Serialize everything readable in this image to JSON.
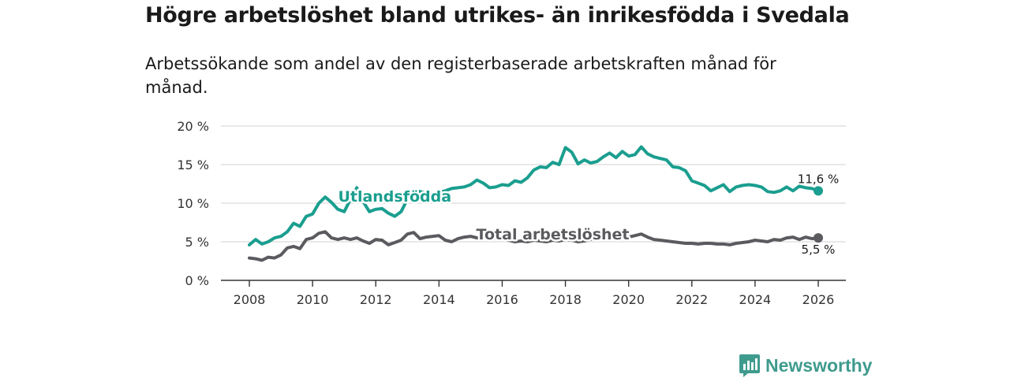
{
  "chart_data": {
    "type": "line",
    "title": "Högre arbetslöshet bland utrikes- än inrikesfödda i Svedala",
    "subtitle": "Arbetssökande som andel av den registerbaserade arbetskraften månad för månad.",
    "xlabel": "",
    "ylabel": "",
    "xlim": [
      2008,
      2026
    ],
    "ylim": [
      0,
      20
    ],
    "x_ticks": [
      {
        "value": 2008,
        "label": "2008"
      },
      {
        "value": 2010,
        "label": "2010"
      },
      {
        "value": 2012,
        "label": "2012"
      },
      {
        "value": 2014,
        "label": "2014"
      },
      {
        "value": 2016,
        "label": "2016"
      },
      {
        "value": 2018,
        "label": "2018"
      },
      {
        "value": 2020,
        "label": "2020"
      },
      {
        "value": 2022,
        "label": "2022"
      },
      {
        "value": 2024,
        "label": "2024"
      },
      {
        "value": 2026,
        "label": "2026"
      }
    ],
    "y_ticks": [
      {
        "value": 0,
        "label": "0 %"
      },
      {
        "value": 5,
        "label": "5 %"
      },
      {
        "value": 10,
        "label": "10 %"
      },
      {
        "value": 15,
        "label": "15 %"
      },
      {
        "value": 20,
        "label": "20 %"
      }
    ],
    "series": [
      {
        "name": "Utlandsfödda",
        "label": "Utlandsfödda",
        "end_label": "11,6 %",
        "color": "#1a9e8f",
        "label_anchor": {
          "x": 2012.6,
          "y": 10.2
        },
        "points": [
          [
            2008.0,
            4.6
          ],
          [
            2008.2,
            5.3
          ],
          [
            2008.4,
            4.7
          ],
          [
            2008.6,
            5.0
          ],
          [
            2008.8,
            5.5
          ],
          [
            2009.0,
            5.7
          ],
          [
            2009.2,
            6.3
          ],
          [
            2009.4,
            7.4
          ],
          [
            2009.6,
            7.0
          ],
          [
            2009.8,
            8.3
          ],
          [
            2010.0,
            8.6
          ],
          [
            2010.2,
            10.0
          ],
          [
            2010.4,
            10.8
          ],
          [
            2010.6,
            10.1
          ],
          [
            2010.8,
            9.2
          ],
          [
            2011.0,
            8.9
          ],
          [
            2011.2,
            10.5
          ],
          [
            2011.4,
            12.0
          ],
          [
            2011.6,
            10.2
          ],
          [
            2011.8,
            8.9
          ],
          [
            2012.0,
            9.2
          ],
          [
            2012.2,
            9.3
          ],
          [
            2012.4,
            8.7
          ],
          [
            2012.6,
            8.3
          ],
          [
            2012.8,
            8.9
          ],
          [
            2013.0,
            10.5
          ],
          [
            2013.2,
            11.7
          ],
          [
            2013.4,
            11.5
          ],
          [
            2013.6,
            11.3
          ],
          [
            2013.8,
            11.2
          ],
          [
            2014.0,
            11.4
          ],
          [
            2014.2,
            11.6
          ],
          [
            2014.4,
            11.9
          ],
          [
            2014.6,
            12.0
          ],
          [
            2014.8,
            12.1
          ],
          [
            2015.0,
            12.4
          ],
          [
            2015.2,
            13.0
          ],
          [
            2015.4,
            12.6
          ],
          [
            2015.6,
            12.0
          ],
          [
            2015.8,
            12.1
          ],
          [
            2016.0,
            12.4
          ],
          [
            2016.2,
            12.3
          ],
          [
            2016.4,
            12.9
          ],
          [
            2016.6,
            12.7
          ],
          [
            2016.8,
            13.3
          ],
          [
            2017.0,
            14.3
          ],
          [
            2017.2,
            14.7
          ],
          [
            2017.4,
            14.6
          ],
          [
            2017.6,
            15.3
          ],
          [
            2017.8,
            15.0
          ],
          [
            2018.0,
            17.2
          ],
          [
            2018.2,
            16.6
          ],
          [
            2018.4,
            15.1
          ],
          [
            2018.6,
            15.6
          ],
          [
            2018.8,
            15.2
          ],
          [
            2019.0,
            15.4
          ],
          [
            2019.2,
            16.0
          ],
          [
            2019.4,
            16.5
          ],
          [
            2019.6,
            15.9
          ],
          [
            2019.8,
            16.7
          ],
          [
            2020.0,
            16.1
          ],
          [
            2020.2,
            16.3
          ],
          [
            2020.4,
            17.3
          ],
          [
            2020.6,
            16.4
          ],
          [
            2020.8,
            16.0
          ],
          [
            2021.0,
            15.8
          ],
          [
            2021.2,
            15.6
          ],
          [
            2021.4,
            14.7
          ],
          [
            2021.6,
            14.6
          ],
          [
            2021.8,
            14.2
          ],
          [
            2022.0,
            12.9
          ],
          [
            2022.2,
            12.6
          ],
          [
            2022.4,
            12.3
          ],
          [
            2022.6,
            11.6
          ],
          [
            2022.8,
            12.0
          ],
          [
            2023.0,
            12.4
          ],
          [
            2023.2,
            11.5
          ],
          [
            2023.4,
            12.1
          ],
          [
            2023.6,
            12.3
          ],
          [
            2023.8,
            12.4
          ],
          [
            2024.0,
            12.3
          ],
          [
            2024.2,
            12.1
          ],
          [
            2024.4,
            11.5
          ],
          [
            2024.6,
            11.4
          ],
          [
            2024.8,
            11.6
          ],
          [
            2025.0,
            12.1
          ],
          [
            2025.2,
            11.6
          ],
          [
            2025.4,
            12.2
          ],
          [
            2025.6,
            12.0
          ],
          [
            2025.8,
            11.9
          ],
          [
            2026.0,
            11.6
          ]
        ]
      },
      {
        "name": "Total arbetslöshet",
        "label": "Total arbetslöshet",
        "end_label": "5,5 %",
        "color": "#5b5b5f",
        "label_anchor": {
          "x": 2017.6,
          "y": 5.3
        },
        "points": [
          [
            2008.0,
            2.9
          ],
          [
            2008.2,
            2.8
          ],
          [
            2008.4,
            2.6
          ],
          [
            2008.6,
            3.0
          ],
          [
            2008.8,
            2.9
          ],
          [
            2009.0,
            3.3
          ],
          [
            2009.2,
            4.2
          ],
          [
            2009.4,
            4.4
          ],
          [
            2009.6,
            4.1
          ],
          [
            2009.8,
            5.3
          ],
          [
            2010.0,
            5.5
          ],
          [
            2010.2,
            6.1
          ],
          [
            2010.4,
            6.3
          ],
          [
            2010.6,
            5.5
          ],
          [
            2010.8,
            5.3
          ],
          [
            2011.0,
            5.5
          ],
          [
            2011.2,
            5.3
          ],
          [
            2011.4,
            5.5
          ],
          [
            2011.6,
            5.1
          ],
          [
            2011.8,
            4.8
          ],
          [
            2012.0,
            5.3
          ],
          [
            2012.2,
            5.2
          ],
          [
            2012.4,
            4.6
          ],
          [
            2012.6,
            4.9
          ],
          [
            2012.8,
            5.2
          ],
          [
            2013.0,
            6.0
          ],
          [
            2013.2,
            6.2
          ],
          [
            2013.4,
            5.4
          ],
          [
            2013.6,
            5.6
          ],
          [
            2013.8,
            5.7
          ],
          [
            2014.0,
            5.8
          ],
          [
            2014.2,
            5.2
          ],
          [
            2014.4,
            5.0
          ],
          [
            2014.6,
            5.4
          ],
          [
            2014.8,
            5.6
          ],
          [
            2015.0,
            5.7
          ],
          [
            2015.2,
            5.5
          ],
          [
            2015.4,
            5.5
          ],
          [
            2015.6,
            5.3
          ],
          [
            2015.8,
            5.5
          ],
          [
            2016.0,
            5.4
          ],
          [
            2016.2,
            5.2
          ],
          [
            2016.4,
            5.0
          ],
          [
            2016.6,
            5.1
          ],
          [
            2016.8,
            5.0
          ],
          [
            2017.0,
            5.2
          ],
          [
            2017.2,
            5.1
          ],
          [
            2017.4,
            5.0
          ],
          [
            2017.6,
            5.2
          ],
          [
            2017.8,
            5.1
          ],
          [
            2018.0,
            5.3
          ],
          [
            2018.2,
            5.2
          ],
          [
            2018.4,
            5.0
          ],
          [
            2018.6,
            5.1
          ],
          [
            2018.8,
            5.3
          ],
          [
            2019.0,
            5.5
          ],
          [
            2019.2,
            5.4
          ],
          [
            2019.4,
            5.6
          ],
          [
            2019.6,
            5.5
          ],
          [
            2019.8,
            5.8
          ],
          [
            2020.0,
            5.6
          ],
          [
            2020.2,
            5.8
          ],
          [
            2020.4,
            6.0
          ],
          [
            2020.6,
            5.6
          ],
          [
            2020.8,
            5.3
          ],
          [
            2021.0,
            5.2
          ],
          [
            2021.2,
            5.1
          ],
          [
            2021.4,
            5.0
          ],
          [
            2021.6,
            4.9
          ],
          [
            2021.8,
            4.8
          ],
          [
            2022.0,
            4.8
          ],
          [
            2022.2,
            4.7
          ],
          [
            2022.4,
            4.8
          ],
          [
            2022.6,
            4.8
          ],
          [
            2022.8,
            4.7
          ],
          [
            2023.0,
            4.7
          ],
          [
            2023.2,
            4.6
          ],
          [
            2023.4,
            4.8
          ],
          [
            2023.6,
            4.9
          ],
          [
            2023.8,
            5.0
          ],
          [
            2024.0,
            5.2
          ],
          [
            2024.2,
            5.1
          ],
          [
            2024.4,
            5.0
          ],
          [
            2024.6,
            5.3
          ],
          [
            2024.8,
            5.2
          ],
          [
            2025.0,
            5.5
          ],
          [
            2025.2,
            5.6
          ],
          [
            2025.4,
            5.3
          ],
          [
            2025.6,
            5.6
          ],
          [
            2025.8,
            5.4
          ],
          [
            2026.0,
            5.5
          ]
        ]
      }
    ]
  },
  "brand": {
    "name": "Newsworthy",
    "logo_icon": "bar-chart-speech-bubble-icon",
    "color": "#3f9b8e"
  }
}
